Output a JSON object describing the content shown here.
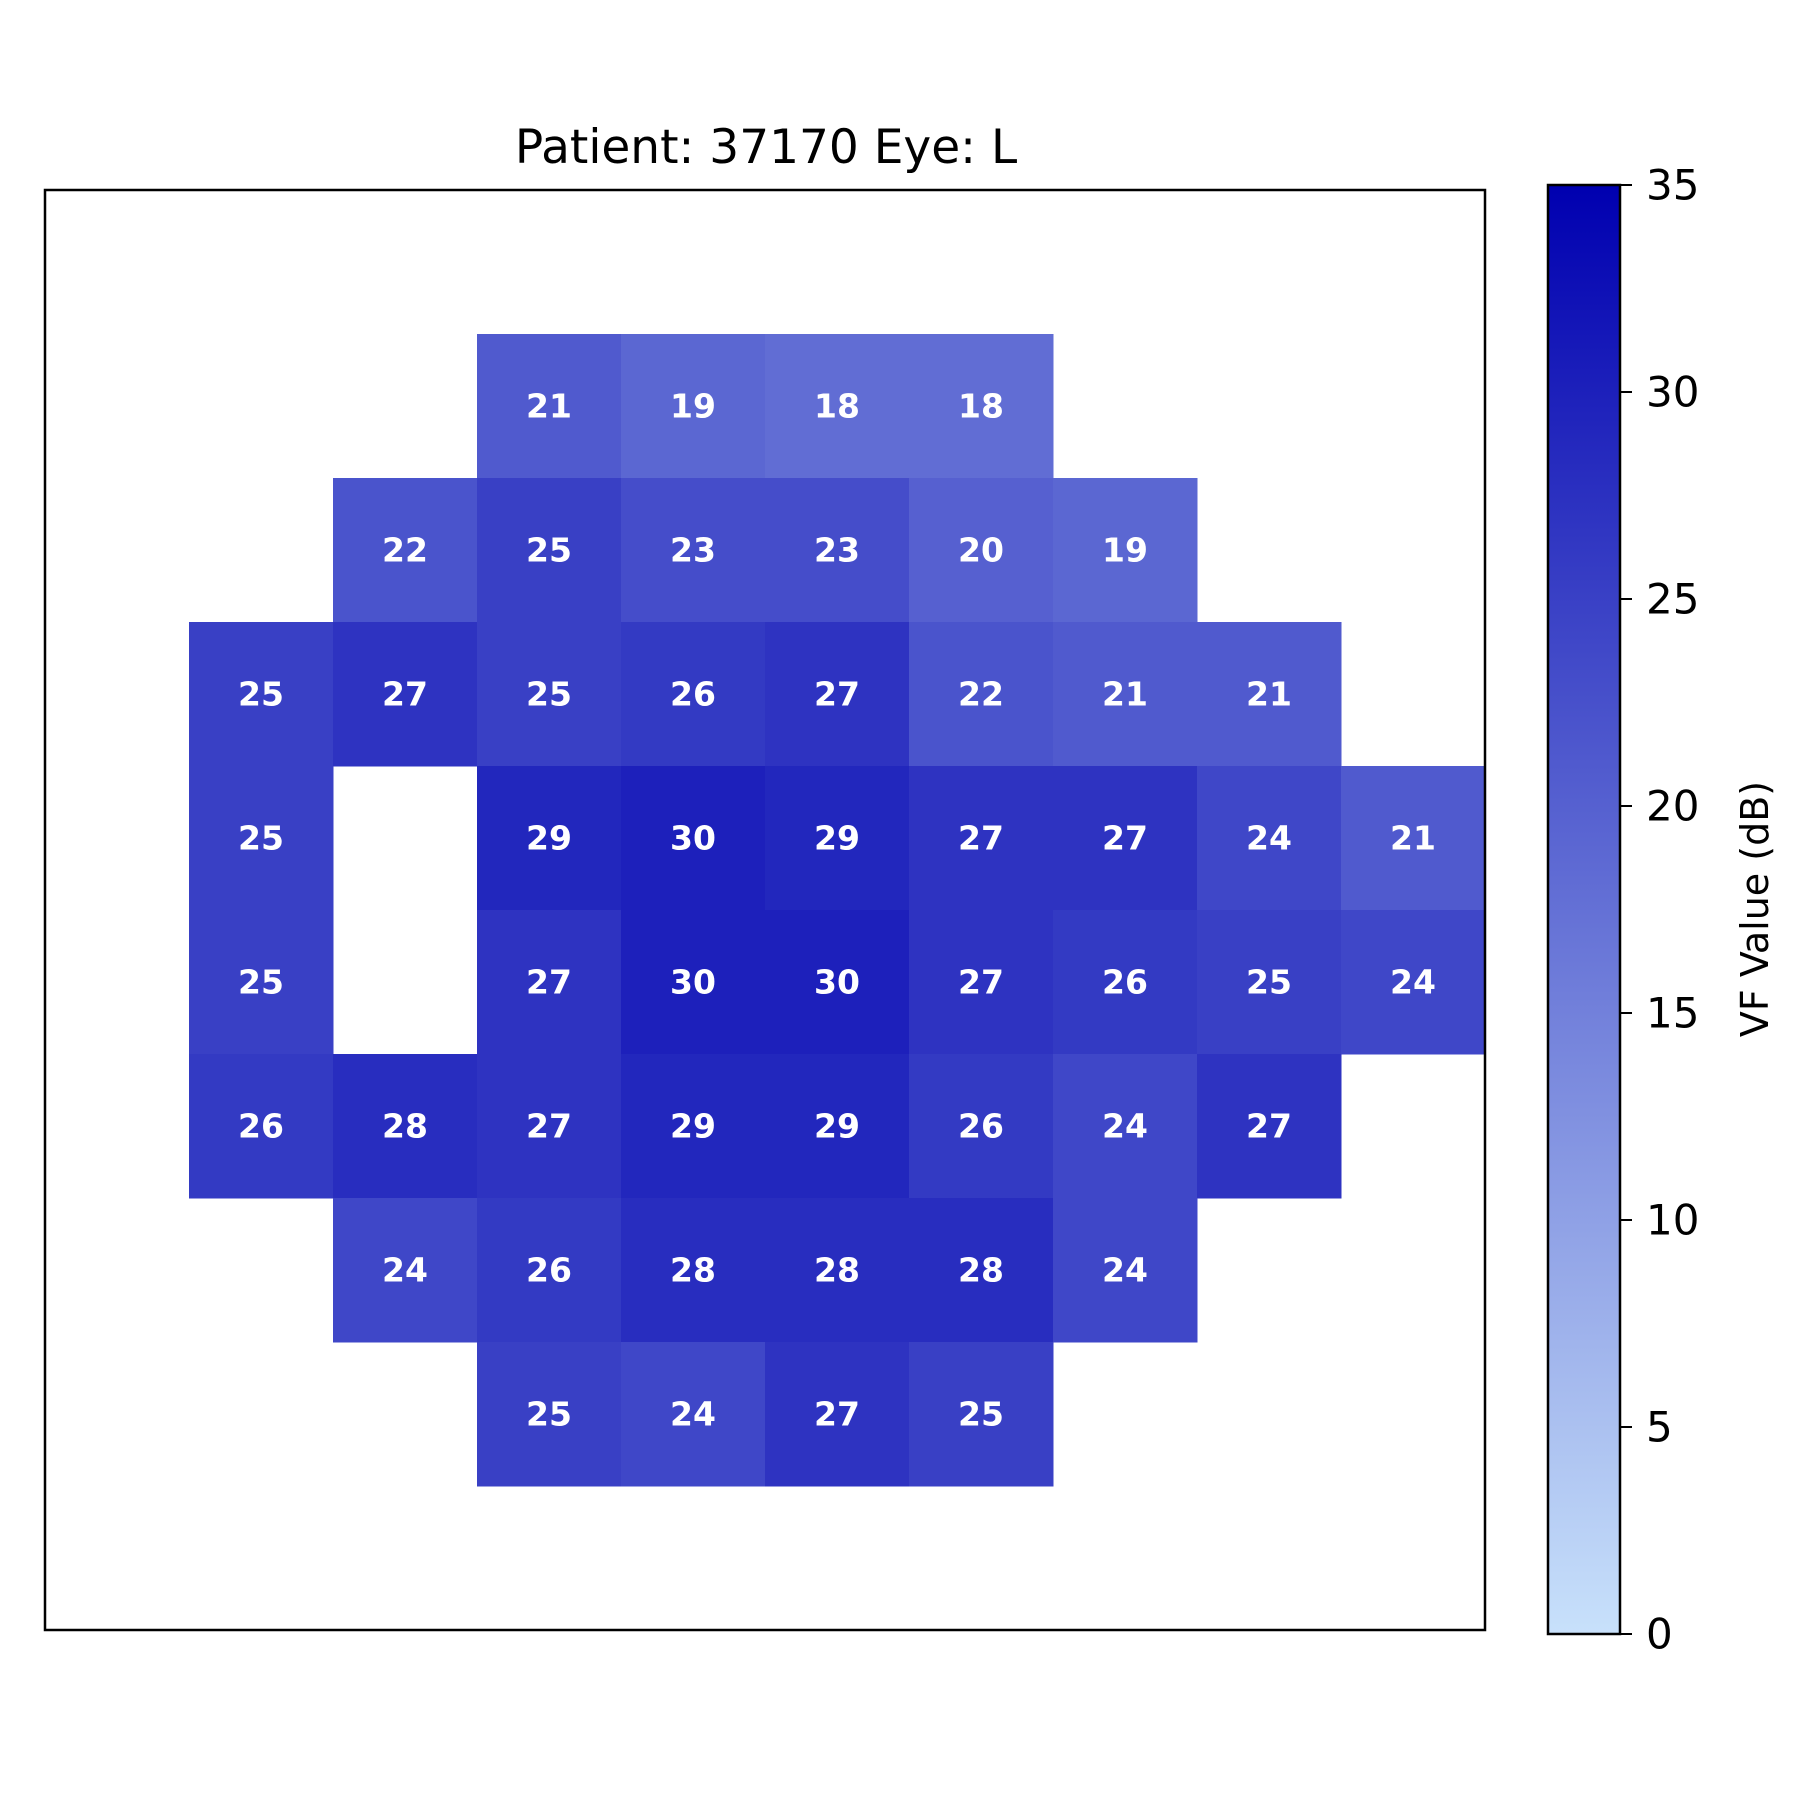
{
  "chart_data": {
    "type": "heatmap",
    "title": "Patient: 37170  Eye: L",
    "grid": [
      [
        null,
        null,
        null,
        null,
        null,
        null,
        null,
        null,
        null,
        null
      ],
      [
        null,
        null,
        null,
        21,
        19,
        18,
        18,
        null,
        null,
        null
      ],
      [
        null,
        null,
        22,
        25,
        23,
        23,
        20,
        19,
        null,
        null
      ],
      [
        null,
        25,
        27,
        25,
        26,
        27,
        22,
        21,
        21,
        null
      ],
      [
        null,
        25,
        null,
        29,
        30,
        29,
        27,
        27,
        24,
        21
      ],
      [
        null,
        25,
        null,
        27,
        30,
        30,
        27,
        26,
        25,
        24
      ],
      [
        null,
        26,
        28,
        27,
        29,
        29,
        26,
        24,
        27,
        null
      ],
      [
        null,
        null,
        24,
        26,
        28,
        28,
        28,
        24,
        null,
        null
      ],
      [
        null,
        null,
        null,
        25,
        24,
        27,
        25,
        null,
        null,
        null
      ],
      [
        null,
        null,
        null,
        null,
        null,
        null,
        null,
        null,
        null,
        null
      ]
    ],
    "colorbar": {
      "label": "VF Value (dB)",
      "range": [
        0,
        35
      ],
      "ticks": [
        "0",
        "5",
        "10",
        "15",
        "20",
        "25",
        "30",
        "35"
      ]
    },
    "colors": {
      "low": "#c8e1fb",
      "high": "#0000b0"
    },
    "xlabel": "",
    "ylabel": "",
    "grid_lines": false
  }
}
